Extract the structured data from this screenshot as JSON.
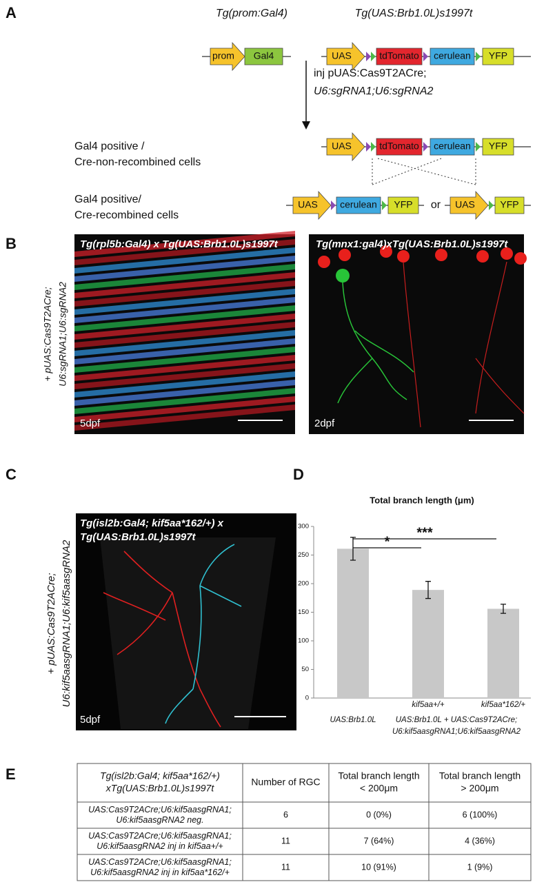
{
  "panel_a": {
    "label": "A",
    "driver_title": "Tg(prom:Gal4)",
    "reporter_title": "Tg(UAS:Brb1.0L)s1997t",
    "elements": {
      "prom": "prom",
      "gal4": "Gal4",
      "uas": "UAS",
      "tdtomato": "tdTomato",
      "cerulean": "cerulean",
      "yfp": "YFP"
    },
    "injection": [
      "inj pUAS:Cas9T2ACre;",
      "U6:sgRNA1;U6:sgRNA2"
    ],
    "non_recombined": [
      "Gal4 positive /",
      "Cre-non-recombined cells"
    ],
    "recombined": [
      "Gal4 positive/",
      "Cre-recombined cells"
    ],
    "or": "or"
  },
  "panel_b": {
    "label": "B",
    "side_label": [
      "+ pUAS:Cas9T2ACre;",
      "U6:sgRNA1;U6:sgRNA2"
    ],
    "left_title": "Tg(rpl5b:Gal4) x Tg(UAS:Brb1.0L)s1997t",
    "left_age": "5dpf",
    "right_title": "Tg(mnx1:gal4)xTg(UAS:Brb1.0L)s1997t",
    "right_age": "2dpf"
  },
  "panel_c": {
    "label": "C",
    "side_label": [
      "+ pUAS:Cas9T2ACre;",
      "U6:kif5aasgRNA1;U6:kif5aasgRNA2"
    ],
    "title": [
      "Tg(isl2b:Gal4; kif5aa*162/+) x",
      "Tg(UAS:Brb1.0L)s1997t"
    ],
    "age": "5dpf"
  },
  "panel_d": {
    "label": "D",
    "chart_data": {
      "type": "bar",
      "title": "Total branch length (μm)",
      "categories": [
        "UAS:Brb1.0L",
        "kif5aa+/+",
        "kif5aa*162/+"
      ],
      "group_label": [
        "UAS:Brb1.0L + UAS:Cas9T2ACre;",
        "U6:kif5aasgRNA1;U6:kif5aasgRNA2"
      ],
      "values": [
        261,
        189,
        156
      ],
      "errors": [
        20,
        15,
        8
      ],
      "color": "#c8c8c8",
      "significance": [
        "*",
        "***"
      ],
      "ylim": [
        0,
        300
      ],
      "yticks": [
        0,
        50,
        100,
        150,
        200,
        250,
        300
      ],
      "grid": false
    }
  },
  "panel_e": {
    "label": "E",
    "table": {
      "header": [
        [
          "Tg(isl2b:Gal4; kif5aa*162/+)",
          "xTg(UAS:Brb1.0L)s1997t"
        ],
        [
          "Number of RGC"
        ],
        [
          "Total branch length",
          "< 200μm"
        ],
        [
          "Total branch length",
          "> 200μm"
        ]
      ],
      "rows": [
        [
          [
            "UAS:Cas9T2ACre;U6:kif5aasgRNA1;",
            "U6:kif5aasgRNA2 neg."
          ],
          [
            "6"
          ],
          [
            "0 (0%)"
          ],
          [
            "6 (100%)"
          ]
        ],
        [
          [
            "UAS:Cas9T2ACre;U6:kif5aasgRNA1;",
            "U6:kif5aasgRNA2 inj in kif5aa+/+"
          ],
          [
            "11"
          ],
          [
            "7 (64%)"
          ],
          [
            "4 (36%)"
          ]
        ],
        [
          [
            "UAS:Cas9T2ACre;U6:kif5aasgRNA1;",
            "U6:kif5aasgRNA2 inj in kif5aa*162/+"
          ],
          [
            "11"
          ],
          [
            "10 (91%)"
          ],
          [
            "1 (9%)"
          ]
        ]
      ]
    }
  }
}
